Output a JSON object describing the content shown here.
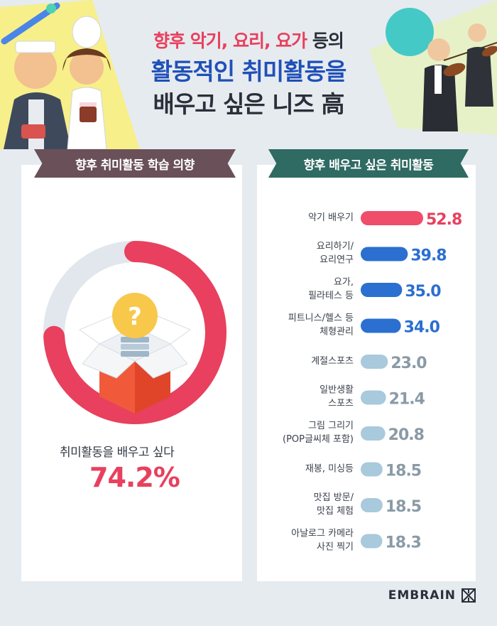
{
  "header": {
    "line1_highlight": "향후 악기, 요리, 요가",
    "line1_rest": " 등의",
    "line2": "활동적인 취미활동을",
    "line3": "배우고 싶은 니즈 高"
  },
  "left_panel": {
    "ribbon_title": "향후 취미활동 학습 의향",
    "caption": "취미활동을 배우고 싶다",
    "value_label": "74.2%",
    "question_mark": "?"
  },
  "right_panel": {
    "ribbon_title": "향후 배우고 싶은 취미활동"
  },
  "brand": {
    "name": "EMBRAIN"
  },
  "colors": {
    "accent_red": "#e8405e",
    "dark_blue": "#2b6fd0",
    "light_blue": "#a9c9dc",
    "donut_track": "#e1e7ec"
  },
  "chart_data": [
    {
      "type": "pie",
      "title": "향후 취미활동 학습 의향",
      "values": [
        74.2,
        25.8
      ],
      "labels": [
        "취미활동을 배우고 싶다",
        ""
      ],
      "colors": [
        "#e8405e",
        "#e1e7ec"
      ]
    },
    {
      "type": "bar",
      "title": "향후 배우고 싶은 취미활동",
      "orientation": "horizontal",
      "categories": [
        [
          "악기 배우기"
        ],
        [
          "요리하기/",
          "요리연구"
        ],
        [
          "요가,",
          "필라테스 등"
        ],
        [
          "피트니스/헬스 등",
          "체형관리"
        ],
        [
          "계절스포츠"
        ],
        [
          "일반생활",
          "스포츠"
        ],
        [
          "그림 그리기",
          "(POP글씨체 포함)"
        ],
        [
          "재봉, 미싱등"
        ],
        [
          "맛집 방문/",
          "맛집 체험"
        ],
        [
          "아날로그 카메라",
          "사진 찍기"
        ]
      ],
      "values": [
        52.8,
        39.8,
        35.0,
        34.0,
        23.0,
        21.4,
        20.8,
        18.5,
        18.5,
        18.3
      ],
      "value_labels": [
        "52.8",
        "39.8",
        "35.0",
        "34.0",
        "23.0",
        "21.4",
        "20.8",
        "18.5",
        "18.5",
        "18.3"
      ],
      "bar_colors": [
        "#f04d6a",
        "#2b6fd0",
        "#2b6fd0",
        "#2b6fd0",
        "#a9c9dc",
        "#a9c9dc",
        "#a9c9dc",
        "#a9c9dc",
        "#a9c9dc",
        "#a9c9dc"
      ],
      "label_colors": [
        "#e8405e",
        "#2b6fd0",
        "#2b6fd0",
        "#2b6fd0",
        "#8a9aa6",
        "#8a9aa6",
        "#8a9aa6",
        "#8a9aa6",
        "#8a9aa6",
        "#8a9aa6"
      ]
    }
  ]
}
